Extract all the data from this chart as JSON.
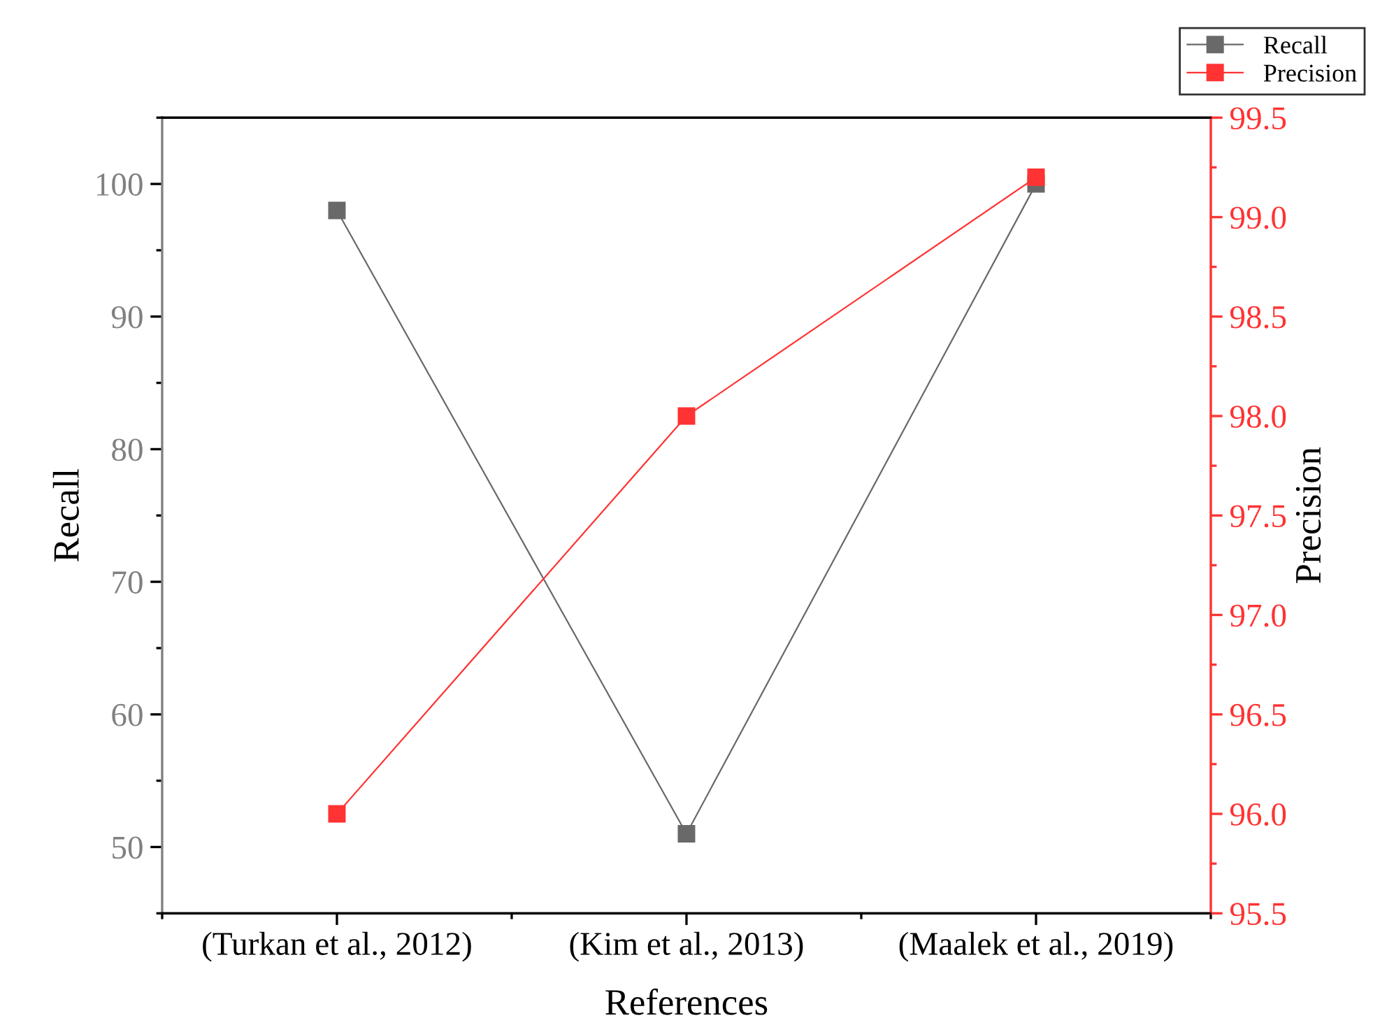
{
  "chart_data": {
    "type": "line",
    "xlabel": "References",
    "ylabel": "Recall",
    "y2label": "Precision",
    "categories": [
      "(Turkan et al., 2012)",
      "(Kim et al., 2013)",
      "(Maalek et al., 2019)"
    ],
    "series": [
      {
        "name": "Recall",
        "color": "#696969",
        "values": [
          98,
          51,
          100
        ]
      },
      {
        "name": "Precision",
        "color": "#ff3333",
        "values": [
          96.0,
          98.0,
          99.2
        ],
        "axis": "y2"
      }
    ],
    "ylim": [
      45,
      105
    ],
    "yticks": [
      50,
      60,
      70,
      80,
      90,
      100
    ],
    "y2lim": [
      95.5,
      99.5
    ],
    "y2ticks": [
      95.5,
      {
        "value": 96,
        "label": "96.0"
      },
      96.5,
      {
        "value": 97,
        "label": "97.0"
      },
      97.5,
      {
        "value": 98,
        "label": "98.0"
      },
      98.5,
      {
        "value": 99,
        "label": "99.0"
      },
      99.5
    ],
    "marker": "square",
    "line_style": "solid",
    "grid": false,
    "legend": "top right"
  }
}
